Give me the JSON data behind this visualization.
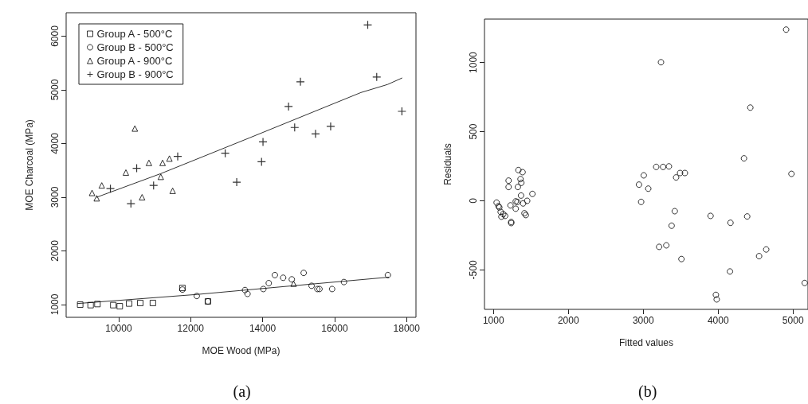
{
  "chart_data": [
    {
      "type": "scatter",
      "xlabel": "MOE Wood (MPa)",
      "ylabel": "MOE Charcoal (MPa)",
      "annotations": [
        "(a)"
      ],
      "xlim": [
        8540,
        18260
      ],
      "ylim": [
        763,
        6437
      ],
      "xticks": [
        10000,
        12000,
        14000,
        16000,
        18000
      ],
      "yticks": [
        1000,
        2000,
        3000,
        4000,
        5000,
        6000
      ],
      "grid": false,
      "legend": "top left",
      "series": [
        {
          "name": "Group A - 500°C",
          "color": "#000000",
          "marker": "square",
          "x": [
            8930,
            9220,
            9410,
            9850,
            10030,
            10290,
            10600,
            10950,
            11770,
            12480
          ],
          "values": [
            1000,
            990,
            1010,
            990,
            970,
            1020,
            1030,
            1030,
            1310,
            1060
          ]
        },
        {
          "name": "Group B - 500°C",
          "color": "#000000",
          "marker": "circle",
          "x": [
            11770,
            12170,
            12480,
            13510,
            13580,
            14020,
            14170,
            14340,
            14570,
            14810,
            15140,
            15360,
            15520,
            15580,
            15930,
            16260,
            17480
          ],
          "values": [
            1280,
            1160,
            1060,
            1270,
            1200,
            1290,
            1400,
            1550,
            1500,
            1470,
            1590,
            1350,
            1290,
            1290,
            1290,
            1420,
            1550
          ]
        },
        {
          "name": "Group A - 900°C",
          "color": "#000000",
          "marker": "triangle",
          "x": [
            10450,
            10200,
            10840,
            11220,
            11410,
            9260,
            9390,
            9530,
            11170,
            10650,
            11500,
            14860
          ],
          "values": [
            4280,
            3460,
            3640,
            3640,
            3720,
            3080,
            2980,
            3220,
            3380,
            3000,
            3120,
            1390
          ]
        },
        {
          "name": "Group B - 900°C",
          "color": "#000000",
          "marker": "cross",
          "x": [
            9770,
            10500,
            10340,
            10970,
            13280,
            13970,
            11640,
            12960,
            14010,
            14890,
            15050,
            14720,
            15470,
            15890,
            16920,
            17170,
            17870
          ],
          "values": [
            3160,
            3540,
            2880,
            3220,
            3280,
            3660,
            3760,
            3820,
            4030,
            4300,
            5150,
            4690,
            4180,
            4320,
            6210,
            5240,
            4600
          ]
        },
        {
          "type": "line",
          "color": "#333333",
          "marker": "none",
          "line_style": "solid",
          "x": [
            9390,
            11170,
            13650,
            16730,
            17470,
            17870
          ],
          "values": [
            3000,
            3440,
            4110,
            4950,
            5100,
            5220
          ]
        },
        {
          "type": "line",
          "color": "#333333",
          "marker": "none",
          "line_style": "solid",
          "x": [
            8860,
            12190,
            14830,
            17500
          ],
          "values": [
            1020,
            1190,
            1350,
            1510
          ]
        }
      ]
    },
    {
      "type": "scatter",
      "xlabel": "Fitted values",
      "ylabel": "Residuals",
      "annotations": [
        "(b)"
      ],
      "xlim": [
        880,
        5200
      ],
      "ylim": [
        -785,
        1314
      ],
      "xticks": [
        1000,
        2000,
        3000,
        4000,
        5000
      ],
      "yticks": [
        -500,
        0,
        500,
        1000
      ],
      "grid": false,
      "series": [
        {
          "color": "#000000",
          "marker": "circle",
          "x": [
            1042,
            1067,
            1078,
            1096,
            1106,
            1131,
            1156,
            1227,
            1237,
            1237,
            1202,
            1202,
            1297,
            1297,
            1319,
            1326,
            1333,
            1361,
            1372,
            1368,
            1389,
            1396,
            1414,
            1432,
            1450,
            1520,
            2943,
            2972,
            3007,
            3067,
            3173,
            3237,
            3265,
            3343,
            3212,
            3308,
            3379,
            3421,
            3439,
            3492,
            3556,
            3510,
            3899,
            3970,
            3981,
            4158,
            4165,
            4345,
            4388,
            4430,
            4547,
            4642,
            4908,
            4979,
            5156
          ],
          "values": [
            -13,
            -38,
            -48,
            -80,
            -115,
            -96,
            -109,
            -33,
            -153,
            -161,
            146,
            100,
            -4,
            -57,
            -8,
            100,
            222,
            157,
            130,
            38,
            207,
            -19,
            -90,
            -103,
            0,
            50,
            117,
            -8,
            184,
            88,
            245,
            1002,
            245,
            249,
            -333,
            -322,
            -180,
            -75,
            169,
            201,
            201,
            -421,
            -109,
            -680,
            -713,
            -511,
            -159,
            307,
            -113,
            674,
            -400,
            -352,
            1238,
            195,
            -594
          ]
        }
      ]
    }
  ]
}
